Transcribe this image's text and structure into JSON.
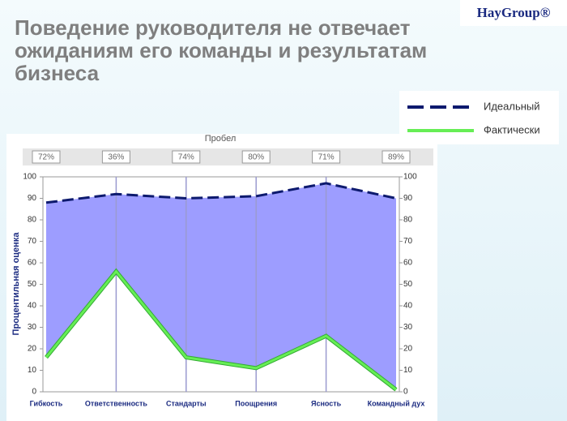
{
  "header": {
    "title": "Поведение руководителя не отвечает ожиданиям его команды и результатам бизнеса",
    "logo": "HayGroup®"
  },
  "chart_data": {
    "type": "line",
    "categories": [
      "Гибкость",
      "Ответственность",
      "Стандарты",
      "Поощрения",
      "Ясность",
      "Командный дух"
    ],
    "series": [
      {
        "name": "Идеальный",
        "color": "#0d1a6e",
        "dashed": true,
        "values": [
          88,
          92,
          90,
          91,
          97,
          90
        ]
      },
      {
        "name": "Фактически",
        "color": "#66ee55",
        "dashed": false,
        "values": [
          16,
          56,
          16,
          11,
          26,
          1
        ]
      }
    ],
    "fill_between_color": "#9d9dff",
    "gap": {
      "title": "Пробел",
      "values": [
        72,
        36,
        74,
        80,
        71,
        89
      ],
      "value_labels": [
        "72%",
        "36%",
        "74%",
        "80%",
        "71%",
        "89%"
      ]
    },
    "y_label": "Процентильная оценка",
    "ylim": [
      0,
      100
    ],
    "yticks": [
      0,
      10,
      20,
      30,
      40,
      50,
      60,
      70,
      80,
      90,
      100
    ],
    "y_ticks_both_sides": true,
    "vertical_grid": true,
    "legend": "top-right"
  }
}
